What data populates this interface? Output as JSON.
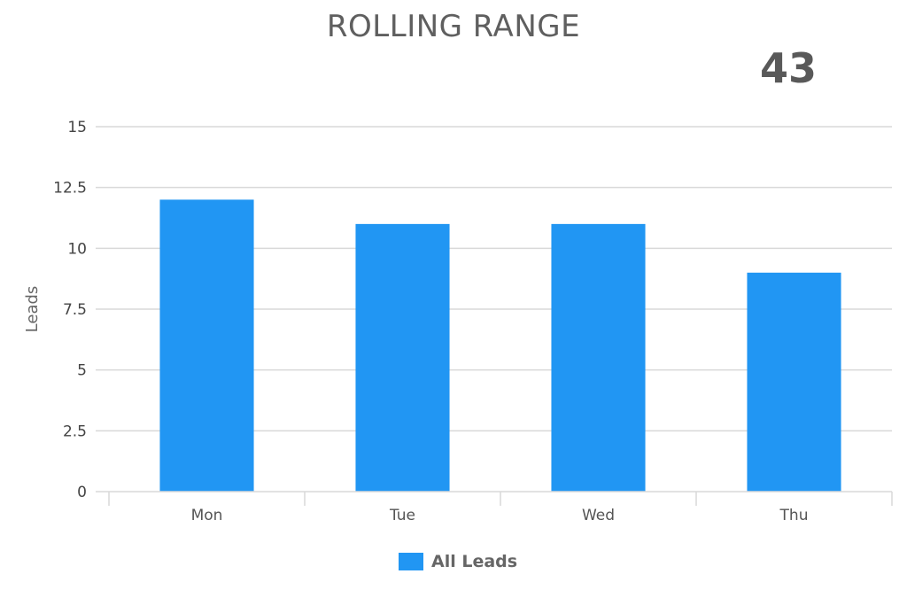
{
  "colors": {
    "bar": "#2196f3",
    "grid": "#d9d9d9",
    "title": "#5f5f5f"
  },
  "highlight_value": "43",
  "chart_data": {
    "type": "bar",
    "title": "ROLLING RANGE",
    "xlabel": "",
    "ylabel": "Leads",
    "categories": [
      "Mon",
      "Tue",
      "Wed",
      "Thu"
    ],
    "series": [
      {
        "name": "All Leads",
        "values": [
          12,
          11,
          11,
          9
        ]
      }
    ],
    "ylim": [
      0,
      15
    ],
    "yticks": [
      "0",
      "2.5",
      "5",
      "7.5",
      "10",
      "12.5",
      "15"
    ],
    "grid": true,
    "legend": "bottom"
  }
}
